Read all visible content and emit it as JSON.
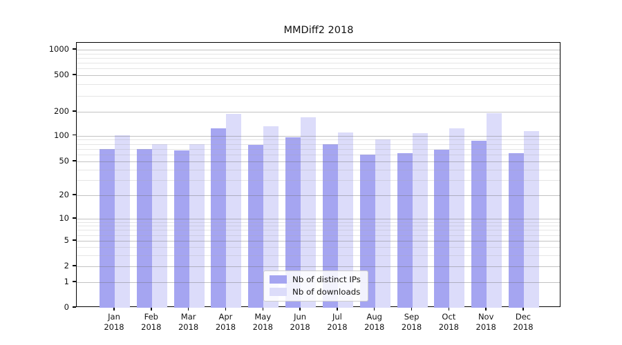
{
  "chart_data": {
    "type": "bar",
    "title": "MMDiff2 2018",
    "categories": [
      "Jan 2018",
      "Feb 2018",
      "Mar 2018",
      "Apr 2018",
      "May 2018",
      "Jun 2018",
      "Jul 2018",
      "Aug 2018",
      "Sep 2018",
      "Oct 2018",
      "Nov 2018",
      "Dec 2018"
    ],
    "series": [
      {
        "name": "Nb of distinct IPs",
        "color": "#a5a5f1",
        "values": [
          70,
          70,
          67,
          124,
          78,
          96,
          80,
          60,
          62,
          68,
          87,
          62
        ]
      },
      {
        "name": "Nb of downloads",
        "color": "#dcdcfa",
        "values": [
          102,
          80,
          80,
          189,
          132,
          170,
          110,
          91,
          107,
          124,
          191,
          114
        ]
      }
    ],
    "y_axis": {
      "scale": "symlog",
      "tick_values": [
        0,
        1,
        2,
        5,
        10,
        20,
        50,
        100,
        200,
        500,
        1000
      ],
      "tick_labels": [
        "0",
        "1",
        "2",
        "5",
        "10",
        "20",
        "50",
        "100",
        "200",
        "500",
        "1000"
      ],
      "minor_tick_values": [
        3,
        4,
        6,
        7,
        8,
        9,
        30,
        40,
        60,
        70,
        80,
        90,
        300,
        400,
        600,
        700,
        800,
        900
      ]
    },
    "x_axis": {
      "tick_labels": [
        "Jan\n2018",
        "Feb\n2018",
        "Mar\n2018",
        "Apr\n2018",
        "May\n2018",
        "Jun\n2018",
        "Jul\n2018",
        "Aug\n2018",
        "Sep\n2018",
        "Oct\n2018",
        "Nov\n2018",
        "Dec\n2018"
      ]
    },
    "grid": "major and minor horizontal gridlines, drawn over bars",
    "legend": {
      "position": "lower center inside plot"
    }
  },
  "colors": {
    "ips_bar": "#a5a5f1",
    "downloads_bar": "#dcdcfa",
    "spine": "#000000",
    "text": "#111111",
    "legend_border": "#cccccc"
  }
}
